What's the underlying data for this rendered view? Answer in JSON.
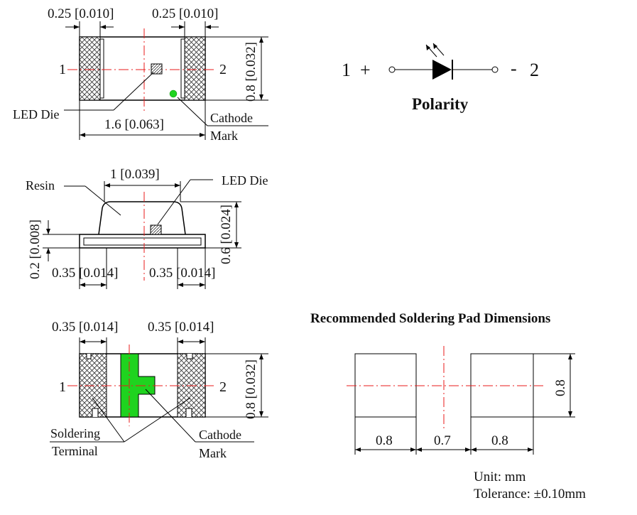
{
  "top_view": {
    "dim_left_pad": "0.25 [0.010]",
    "dim_right_pad": "0.25 [0.010]",
    "dim_height": "0.8 [0.032]",
    "dim_length": "1.6 [0.063]",
    "pin1": "1",
    "pin2": "2",
    "led_die_label": "LED Die",
    "cathode_mark_line1": "Cathode",
    "cathode_mark_line2": "Mark",
    "cathode_dot_color": "#1fd31f"
  },
  "side_view": {
    "resin_label": "Resin",
    "led_die_label": "LED Die",
    "dim_lens_width": "1 [0.039]",
    "dim_total_height": "0.6 [0.024]",
    "dim_base_height": "0.2 [0.008]",
    "dim_left_pad": "0.35 [0.014]",
    "dim_right_pad": "0.35 [0.014]"
  },
  "bottom_view": {
    "dim_left_pad": "0.35 [0.014]",
    "dim_right_pad": "0.35 [0.014]",
    "dim_height": "0.8 [0.032]",
    "pin1": "1",
    "pin2": "2",
    "soldering_terminal_line1": "Soldering",
    "soldering_terminal_line2": "Terminal",
    "cathode_mark_line1": "Cathode",
    "cathode_mark_line2": "Mark",
    "cathode_mark_color": "#1fd31f"
  },
  "polarity": {
    "pin1": "1",
    "plus": "+",
    "minus": "-",
    "pin2": "2",
    "title": "Polarity"
  },
  "solder_pads": {
    "title": "Recommended Soldering Pad Dimensions",
    "pad_width_left": "0.8",
    "gap": "0.7",
    "pad_width_right": "0.8",
    "pad_height": "0.8"
  },
  "notes": {
    "unit": "Unit: mm",
    "tolerance": "Tolerance: ±0.10mm"
  },
  "colors": {
    "center_line": "#e81b1b",
    "line": "#000000"
  }
}
